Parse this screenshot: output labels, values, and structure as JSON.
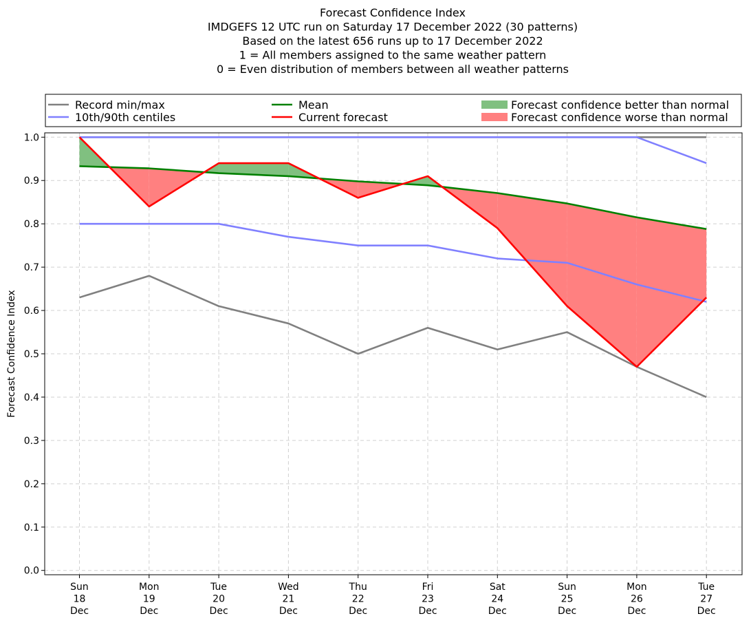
{
  "chart_data": {
    "type": "line",
    "title_lines": [
      "Forecast Confidence Index",
      "IMDGEFS 12 UTC run on Saturday 17 December 2022 (30 patterns)",
      "Based on the latest 656 runs up to 17 December 2022",
      "1 = All members assigned to the same weather pattern",
      "0 = Even distribution of members between all weather patterns"
    ],
    "ylabel": "Forecast Confidence Index",
    "xlabel": "",
    "ylim": [
      -0.01,
      1.01
    ],
    "yticks": [
      "0.0",
      "0.1",
      "0.2",
      "0.3",
      "0.4",
      "0.5",
      "0.6",
      "0.7",
      "0.8",
      "0.9",
      "1.0"
    ],
    "grid": true,
    "categories": [
      [
        "Sun",
        "18",
        "Dec"
      ],
      [
        "Mon",
        "19",
        "Dec"
      ],
      [
        "Tue",
        "20",
        "Dec"
      ],
      [
        "Wed",
        "21",
        "Dec"
      ],
      [
        "Thu",
        "22",
        "Dec"
      ],
      [
        "Fri",
        "23",
        "Dec"
      ],
      [
        "Sat",
        "24",
        "Dec"
      ],
      [
        "Sun",
        "25",
        "Dec"
      ],
      [
        "Mon",
        "26",
        "Dec"
      ],
      [
        "Tue",
        "27",
        "Dec"
      ]
    ],
    "legend": {
      "placement": "top",
      "entries": [
        {
          "label": "Record min/max",
          "color": "#808080",
          "kind": "line"
        },
        {
          "label": "10th/90th centiles",
          "color": "#8080ff",
          "kind": "line"
        },
        {
          "label": "Mean",
          "color": "#008000",
          "kind": "line"
        },
        {
          "label": "Current forecast",
          "color": "#ff0000",
          "kind": "line"
        },
        {
          "label": "Forecast confidence better than normal",
          "color": "#80c080",
          "kind": "patch"
        },
        {
          "label": "Forecast confidence worse than normal",
          "color": "#ff8080",
          "kind": "patch"
        }
      ]
    },
    "series": [
      {
        "name": "Record max",
        "color": "#808080",
        "values": [
          1.0,
          1.0,
          1.0,
          1.0,
          1.0,
          1.0,
          1.0,
          1.0,
          1.0,
          1.0
        ]
      },
      {
        "name": "Record min",
        "color": "#808080",
        "values": [
          0.63,
          0.68,
          0.61,
          0.57,
          0.5,
          0.56,
          0.51,
          0.55,
          0.47,
          0.4
        ]
      },
      {
        "name": "90th centile",
        "color": "#8080ff",
        "values": [
          1.0,
          1.0,
          1.0,
          1.0,
          1.0,
          1.0,
          1.0,
          1.0,
          1.0,
          0.94
        ]
      },
      {
        "name": "10th centile",
        "color": "#8080ff",
        "values": [
          0.8,
          0.8,
          0.8,
          0.77,
          0.75,
          0.75,
          0.72,
          0.71,
          0.66,
          0.62
        ]
      },
      {
        "name": "Mean",
        "color": "#008000",
        "values": [
          0.933,
          0.928,
          0.917,
          0.91,
          0.898,
          0.889,
          0.871,
          0.847,
          0.815,
          0.788
        ]
      },
      {
        "name": "Current forecast",
        "color": "#ff0000",
        "values": [
          1.0,
          0.84,
          0.94,
          0.94,
          0.86,
          0.91,
          0.79,
          0.61,
          0.47,
          0.63
        ]
      }
    ],
    "fill_colors": {
      "better": "#80c080",
      "worse": "#ff8080"
    }
  }
}
